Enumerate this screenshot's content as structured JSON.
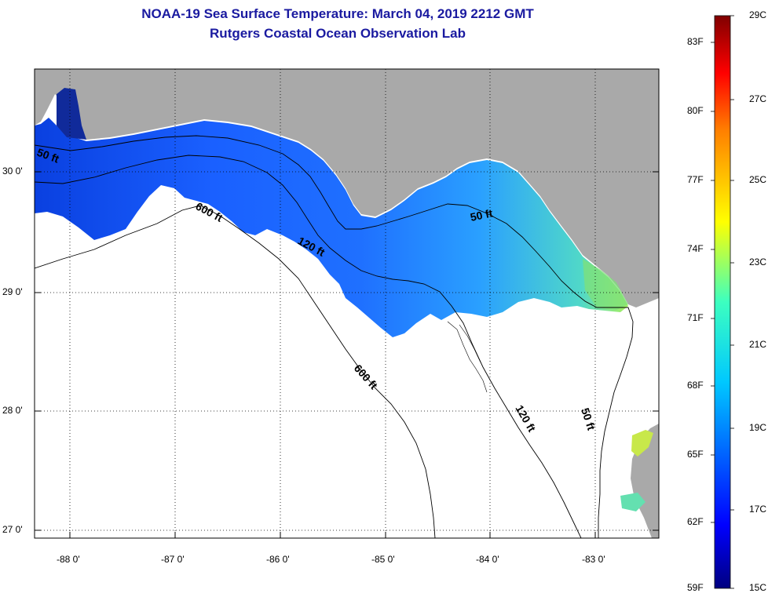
{
  "header": {
    "title": "NOAA-19 Sea Surface Temperature:  March 04, 2019 2212 GMT",
    "subtitle": "Rutgers Coastal Ocean Observation Lab"
  },
  "axes": {
    "lon_ticks": [
      {
        "lon": -88,
        "label": "-88 0'"
      },
      {
        "lon": -87,
        "label": "-87 0'"
      },
      {
        "lon": -86,
        "label": "-86 0'"
      },
      {
        "lon": -85,
        "label": "-85 0'"
      },
      {
        "lon": -84,
        "label": "-84 0'"
      },
      {
        "lon": -83,
        "label": "-83 0'"
      }
    ],
    "lat_ticks": [
      {
        "lat": 30,
        "label": "30 0'"
      },
      {
        "lat": 29,
        "label": "29 0'"
      },
      {
        "lat": 28,
        "label": "28 0'"
      },
      {
        "lat": 27,
        "label": "27 0'"
      }
    ]
  },
  "contours": [
    {
      "label": "50 ft"
    },
    {
      "label": "600 ft"
    },
    {
      "label": "120 ft"
    },
    {
      "label": "50 ft"
    },
    {
      "label": "600 ft"
    },
    {
      "label": "120 ft"
    },
    {
      "label": "50 ft"
    }
  ],
  "colorbar": {
    "fahrenheit": [
      "83F",
      "80F",
      "77F",
      "74F",
      "71F",
      "68F",
      "65F",
      "62F",
      "59F"
    ],
    "celsius": [
      "29C",
      "27C",
      "25C",
      "23C",
      "21C",
      "19C",
      "17C",
      "15C"
    ]
  },
  "colors": {
    "land": "#a9a9a9",
    "no_data": "#ffffff",
    "title": "#1a1aa0"
  }
}
